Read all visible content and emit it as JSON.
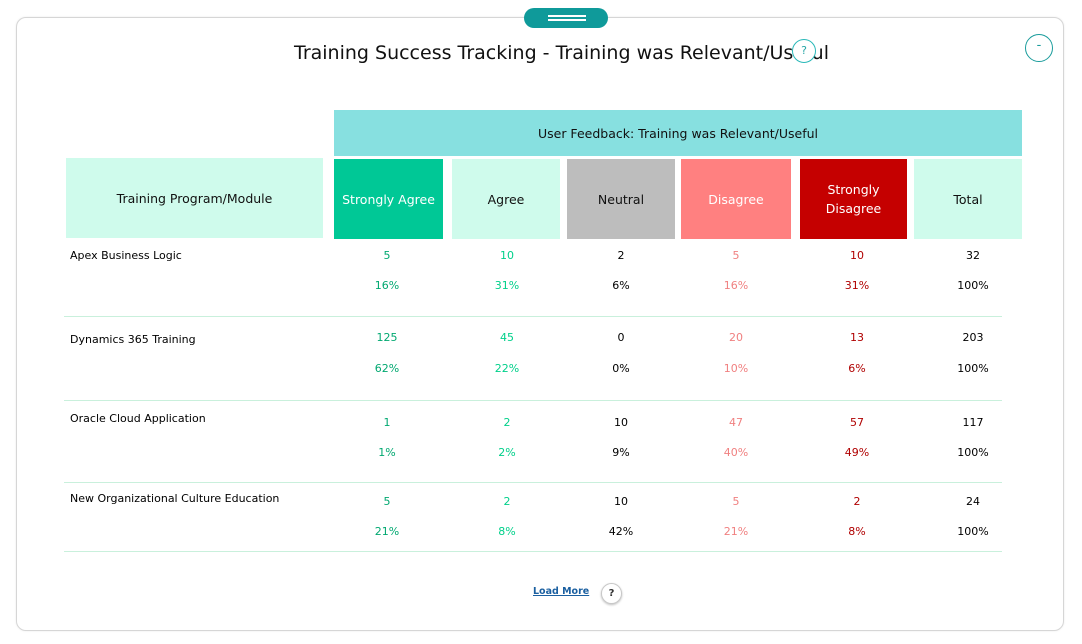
{
  "title": "Training Success Tracking - Training was Relevant/Useful",
  "title_help_icon": "?",
  "collapse_label": "-",
  "table": {
    "group_header": "User Feedback: Training was Relevant/Useful",
    "program_header": "Training Program/Module",
    "columns": [
      "Strongly Agree",
      "Agree",
      "Neutral",
      "Disagree",
      "Strongly Disagree",
      "Total"
    ],
    "rows": [
      {
        "program": "Apex Business Logic",
        "counts": [
          "5",
          "10",
          "2",
          "5",
          "10",
          "32"
        ],
        "percents": [
          "16%",
          "31%",
          "6%",
          "16%",
          "31%",
          "100%"
        ]
      },
      {
        "program": "Dynamics 365 Training",
        "counts": [
          "125",
          "45",
          "0",
          "20",
          "13",
          "203"
        ],
        "percents": [
          "62%",
          "22%",
          "0%",
          "10%",
          "6%",
          "100%"
        ]
      },
      {
        "program": "Oracle Cloud Application",
        "counts": [
          "1",
          "2",
          "10",
          "47",
          "57",
          "117"
        ],
        "percents": [
          "1%",
          "2%",
          "9%",
          "40%",
          "49%",
          "100%"
        ]
      },
      {
        "program": "New Organizational Culture Education",
        "counts": [
          "5",
          "2",
          "10",
          "5",
          "2",
          "24"
        ],
        "percents": [
          "21%",
          "8%",
          "42%",
          "21%",
          "8%",
          "100%"
        ]
      }
    ]
  },
  "load_more_label": "Load More",
  "footer_help_icon": "?",
  "colors": {
    "accent": "#0f9a9a",
    "group_header_bg": "#87e0e0",
    "strongly_agree": "#00c896",
    "agree_bg": "#cffbec",
    "neutral_bg": "#bdbdbd",
    "disagree": "#ff8080",
    "strongly_disagree": "#c50000"
  }
}
